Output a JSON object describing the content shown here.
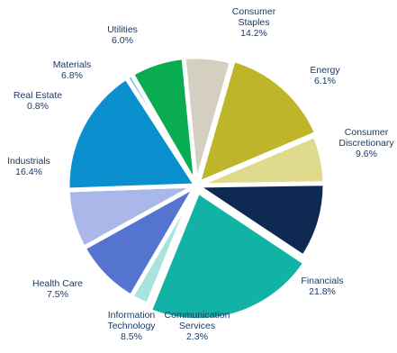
{
  "chart_data": {
    "type": "pie",
    "title": "",
    "slices": [
      {
        "lines": [
          "Consumer",
          "Staples"
        ],
        "value": 14.2,
        "value_label": "14.2%",
        "color": "#bfb52a"
      },
      {
        "lines": [
          "Energy"
        ],
        "value": 6.1,
        "value_label": "6.1%",
        "color": "#e0db8c"
      },
      {
        "lines": [
          "Consumer",
          "Discretionary"
        ],
        "value": 9.6,
        "value_label": "9.6%",
        "color": "#0e2a52"
      },
      {
        "lines": [
          "Financials"
        ],
        "value": 21.8,
        "value_label": "21.8%",
        "color": "#12b3a6"
      },
      {
        "lines": [
          "Communication",
          "Services"
        ],
        "value": 2.3,
        "value_label": "2.3%",
        "color": "#a9e3e0"
      },
      {
        "lines": [
          "Information",
          "Technology"
        ],
        "value": 8.5,
        "value_label": "8.5%",
        "color": "#5574d0"
      },
      {
        "lines": [
          "Health Care"
        ],
        "value": 7.5,
        "value_label": "7.5%",
        "color": "#a9b8e8"
      },
      {
        "lines": [
          "Industrials"
        ],
        "value": 16.4,
        "value_label": "16.4%",
        "color": "#0a90cf"
      },
      {
        "lines": [
          "Real Estate"
        ],
        "value": 0.8,
        "value_label": "0.8%",
        "color": "#7fc3e6"
      },
      {
        "lines": [
          "Materials"
        ],
        "value": 6.8,
        "value_label": "6.8%",
        "color": "#0aac52"
      },
      {
        "lines": [
          "Utilities"
        ],
        "value": 6.0,
        "value_label": "6.0%",
        "color": "#d5cfc2"
      }
    ],
    "start_angle_deg": -74,
    "legend": "none",
    "label_color": "#1a3a66"
  }
}
